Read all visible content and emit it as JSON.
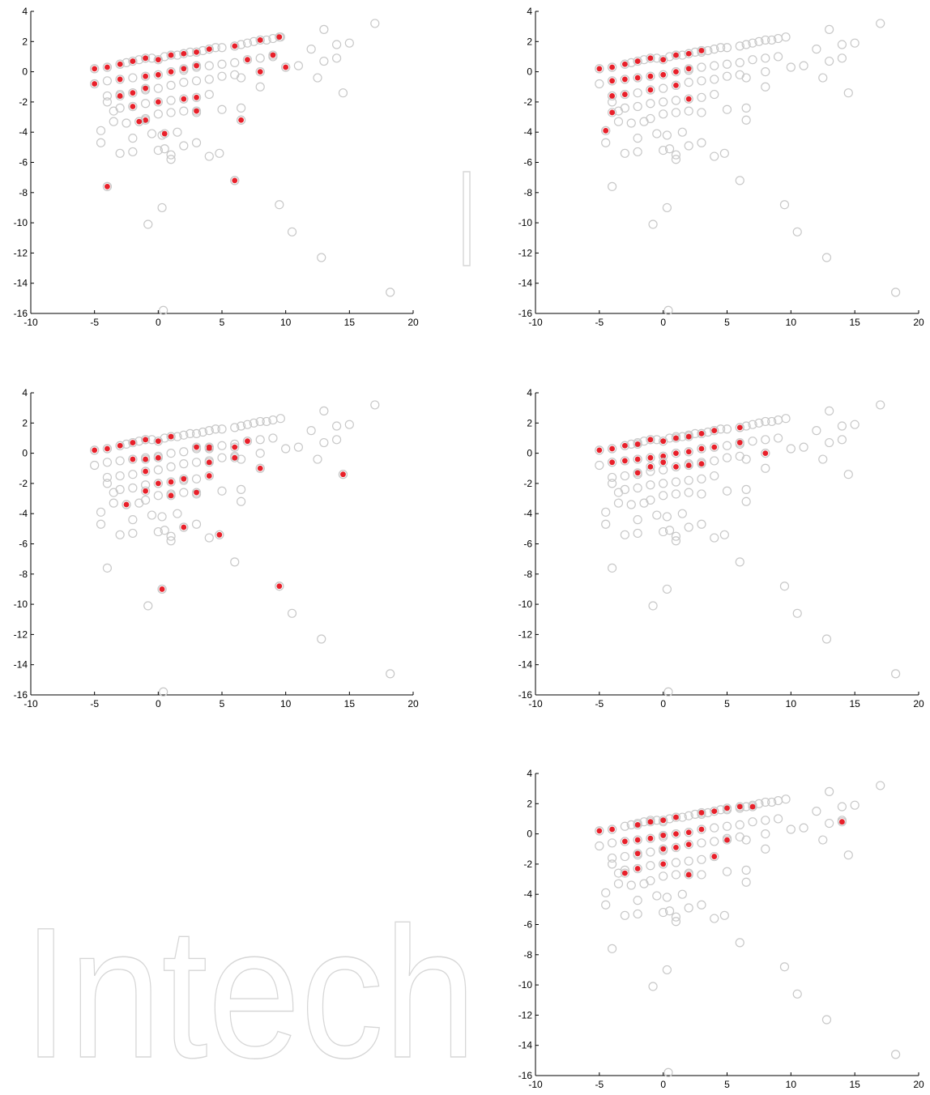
{
  "watermark": "Intech",
  "colors": {
    "background": "#ffffff",
    "hollow_marker": "#c8c8c8",
    "highlight": "#e8202a",
    "axis": "#000000",
    "watermark": "#d6d6d6"
  },
  "chart_data": [
    {
      "type": "scatter",
      "panel": "top-left",
      "xlim": [
        -10,
        20
      ],
      "ylim": [
        -16,
        4
      ],
      "xticks": [
        -10,
        -5,
        0,
        5,
        10,
        15,
        20
      ],
      "yticks": [
        4,
        2,
        0,
        -2,
        -4,
        -6,
        -8,
        -10,
        -12,
        -14,
        -16
      ],
      "grid": false,
      "highlighted": [
        [
          -5,
          0.2
        ],
        [
          -4,
          0.3
        ],
        [
          -3,
          0.5
        ],
        [
          -2,
          0.7
        ],
        [
          -1,
          0.9
        ],
        [
          0,
          0.8
        ],
        [
          1,
          1.1
        ],
        [
          2,
          1.2
        ],
        [
          3,
          1.3
        ],
        [
          4,
          1.5
        ],
        [
          6,
          1.7
        ],
        [
          8,
          2.1
        ],
        [
          9.5,
          2.3
        ],
        [
          -5,
          -0.8
        ],
        [
          -3,
          -0.5
        ],
        [
          -1,
          -0.3
        ],
        [
          0,
          -0.2
        ],
        [
          1,
          0.0
        ],
        [
          2,
          0.2
        ],
        [
          3,
          0.4
        ],
        [
          7,
          0.8
        ],
        [
          9,
          1.1
        ],
        [
          10,
          0.3
        ],
        [
          8,
          0.0
        ],
        [
          -2,
          -1.4
        ],
        [
          -1,
          -1.1
        ],
        [
          0,
          -2.0
        ],
        [
          2,
          -1.8
        ],
        [
          3,
          -1.7
        ],
        [
          -3,
          -1.6
        ],
        [
          -2,
          -2.3
        ],
        [
          3,
          -2.6
        ],
        [
          -1,
          -3.2
        ],
        [
          -1.5,
          -3.3
        ],
        [
          0.5,
          -4.1
        ],
        [
          6.5,
          -3.2
        ],
        [
          -4,
          -7.6
        ],
        [
          6,
          -7.2
        ]
      ]
    },
    {
      "type": "scatter",
      "panel": "top-right",
      "xlim": [
        -10,
        20
      ],
      "ylim": [
        -16,
        4
      ],
      "xticks": [
        -10,
        -5,
        0,
        5,
        10,
        15,
        20
      ],
      "yticks": [
        4,
        2,
        0,
        -2,
        -4,
        -6,
        -8,
        -10,
        -12,
        -14,
        -16
      ],
      "grid": false,
      "highlighted": [
        [
          -5,
          0.2
        ],
        [
          -4,
          0.3
        ],
        [
          -3,
          0.5
        ],
        [
          -2,
          0.7
        ],
        [
          -1,
          0.9
        ],
        [
          0,
          0.8
        ],
        [
          1,
          1.1
        ],
        [
          2,
          1.2
        ],
        [
          3,
          1.4
        ],
        [
          -4,
          -0.6
        ],
        [
          -3,
          -0.5
        ],
        [
          -2,
          -0.4
        ],
        [
          -1,
          -0.3
        ],
        [
          0,
          -0.2
        ],
        [
          1,
          0.0
        ],
        [
          2,
          0.2
        ],
        [
          -3,
          -1.5
        ],
        [
          -4,
          -1.6
        ],
        [
          -1,
          -1.2
        ],
        [
          1,
          -0.9
        ],
        [
          2,
          -1.8
        ],
        [
          -4,
          -2.7
        ],
        [
          -4.5,
          -3.9
        ]
      ]
    },
    {
      "type": "scatter",
      "panel": "middle-left",
      "xlim": [
        -10,
        20
      ],
      "ylim": [
        -16,
        4
      ],
      "xticks": [
        -10,
        -5,
        0,
        5,
        10,
        15,
        20
      ],
      "yticks": [
        4,
        2,
        0,
        -2,
        -4,
        -6,
        -8,
        -10,
        -12,
        -14,
        -16
      ],
      "grid": false,
      "highlighted": [
        [
          -5,
          0.2
        ],
        [
          -4,
          0.3
        ],
        [
          -3,
          0.5
        ],
        [
          -2,
          0.7
        ],
        [
          -1,
          0.9
        ],
        [
          0,
          0.8
        ],
        [
          1,
          1.1
        ],
        [
          3,
          0.4
        ],
        [
          4,
          0.3
        ],
        [
          4,
          0.4
        ],
        [
          6,
          0.4
        ],
        [
          7,
          0.8
        ],
        [
          6,
          -0.3
        ],
        [
          -2,
          -0.4
        ],
        [
          -1,
          -0.4
        ],
        [
          0,
          -0.3
        ],
        [
          -1,
          -1.2
        ],
        [
          0,
          -2.0
        ],
        [
          1,
          -1.9
        ],
        [
          2,
          -1.7
        ],
        [
          4,
          -1.5
        ],
        [
          4,
          -0.6
        ],
        [
          8,
          -1.0
        ],
        [
          14.5,
          -1.4
        ],
        [
          1,
          -2.8
        ],
        [
          3,
          -2.6
        ],
        [
          -1,
          -2.5
        ],
        [
          -2.5,
          -3.4
        ],
        [
          2,
          -4.9
        ],
        [
          4.8,
          -5.4
        ],
        [
          9.5,
          -8.8
        ],
        [
          0.3,
          -9.0
        ]
      ]
    },
    {
      "type": "scatter",
      "panel": "middle-right",
      "xlim": [
        -10,
        20
      ],
      "ylim": [
        -16,
        4
      ],
      "xticks": [
        -10,
        -5,
        0,
        5,
        10,
        15,
        20
      ],
      "yticks": [
        4,
        2,
        0,
        -2,
        -4,
        -6,
        -8,
        -10,
        -12,
        -14,
        -16
      ],
      "grid": false,
      "highlighted": [
        [
          -5,
          0.2
        ],
        [
          -4,
          0.3
        ],
        [
          -3,
          0.5
        ],
        [
          -2,
          0.6
        ],
        [
          -1,
          0.9
        ],
        [
          0,
          0.8
        ],
        [
          1,
          1.0
        ],
        [
          2,
          1.1
        ],
        [
          3,
          1.3
        ],
        [
          4,
          1.5
        ],
        [
          6,
          1.7
        ],
        [
          -4,
          -0.6
        ],
        [
          -3,
          -0.5
        ],
        [
          -2,
          -0.4
        ],
        [
          -1,
          -0.3
        ],
        [
          0,
          -0.2
        ],
        [
          1,
          0.0
        ],
        [
          2,
          0.1
        ],
        [
          3,
          0.3
        ],
        [
          4,
          0.4
        ],
        [
          6,
          0.7
        ],
        [
          8,
          0.0
        ],
        [
          -2,
          -1.3
        ],
        [
          -1,
          -0.9
        ],
        [
          0,
          -0.6
        ],
        [
          1,
          -0.9
        ],
        [
          2,
          -0.8
        ],
        [
          3,
          -0.7
        ]
      ]
    },
    {
      "type": "scatter",
      "panel": "bottom-right",
      "xlim": [
        -10,
        20
      ],
      "ylim": [
        -16,
        4
      ],
      "xticks": [
        -10,
        -5,
        0,
        5,
        10,
        15,
        20
      ],
      "yticks": [
        4,
        2,
        0,
        -2,
        -4,
        -6,
        -8,
        -10,
        -12,
        -14,
        -16
      ],
      "grid": false,
      "highlighted": [
        [
          -5,
          0.2
        ],
        [
          -4,
          0.3
        ],
        [
          -2,
          0.6
        ],
        [
          -1,
          0.8
        ],
        [
          0,
          0.9
        ],
        [
          1,
          1.1
        ],
        [
          3,
          1.4
        ],
        [
          4,
          1.5
        ],
        [
          5,
          1.7
        ],
        [
          6,
          1.8
        ],
        [
          7,
          1.8
        ],
        [
          14,
          0.8
        ],
        [
          3,
          0.3
        ],
        [
          5,
          -0.4
        ],
        [
          -3,
          -0.5
        ],
        [
          -2,
          -0.4
        ],
        [
          -1,
          -0.3
        ],
        [
          0,
          -0.1
        ],
        [
          1,
          0.0
        ],
        [
          2,
          0.1
        ],
        [
          -2,
          -1.3
        ],
        [
          0,
          -1.0
        ],
        [
          1,
          -0.9
        ],
        [
          2,
          -0.7
        ],
        [
          4,
          -1.5
        ],
        [
          -2,
          -2.3
        ],
        [
          -3,
          -2.6
        ],
        [
          0,
          -2.0
        ],
        [
          2,
          -2.7
        ]
      ]
    }
  ]
}
